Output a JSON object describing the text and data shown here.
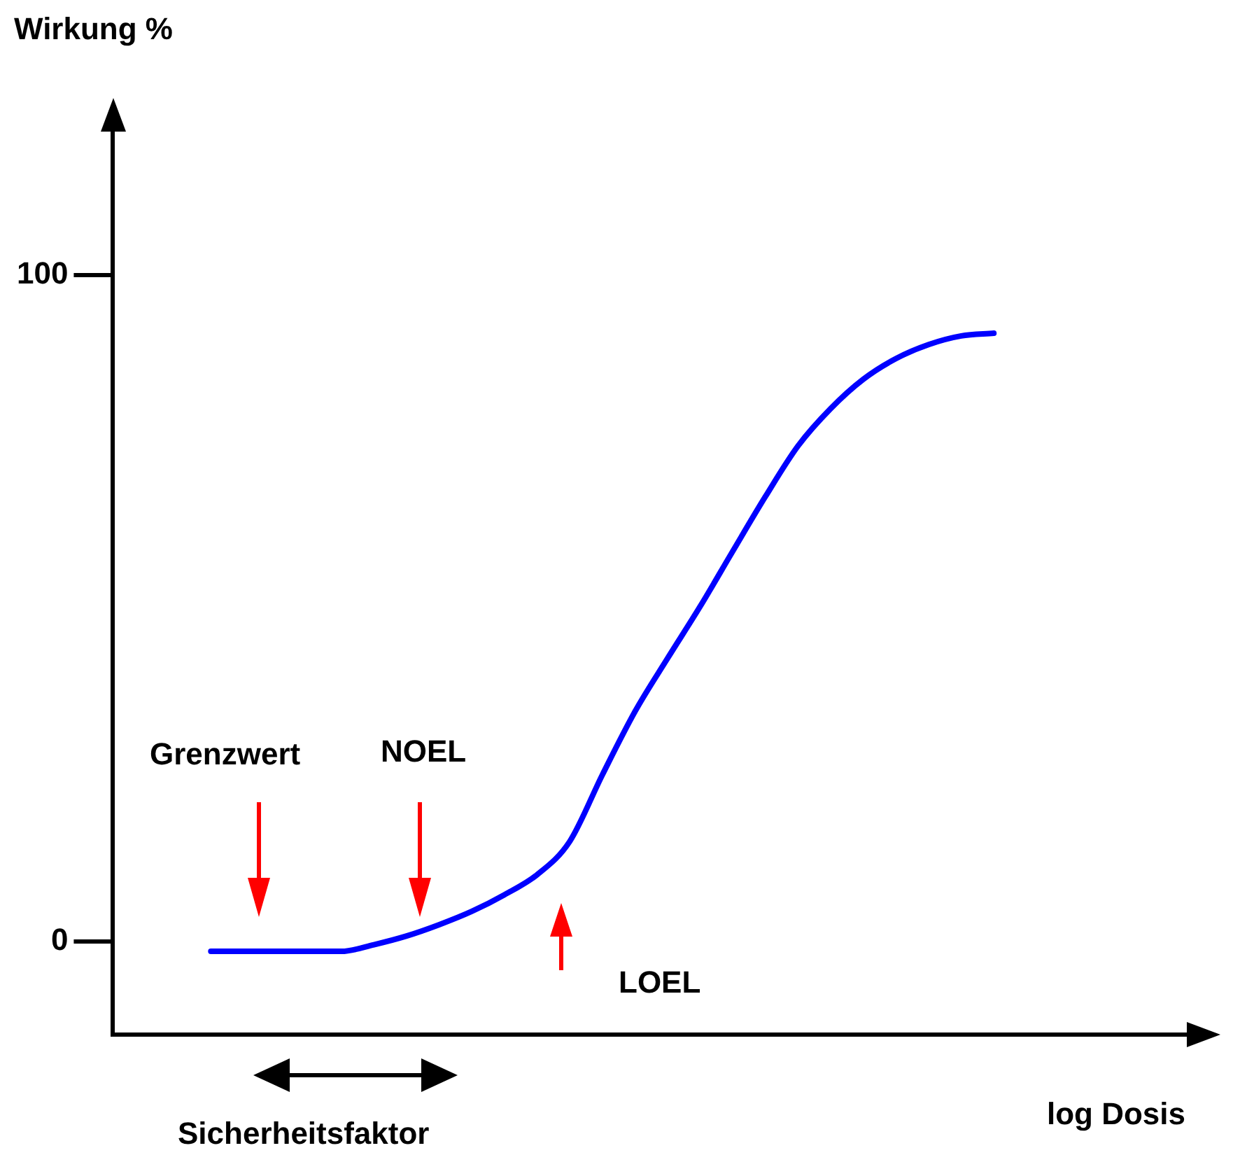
{
  "chart_data": {
    "type": "line",
    "xlabel": "log Dosis",
    "ylabel": "Wirkung %",
    "categories": [
      null,
      null,
      null,
      null,
      null,
      null,
      null,
      null,
      null,
      null,
      null,
      null,
      null,
      null,
      null,
      null,
      null,
      null,
      null,
      null,
      null,
      null,
      null,
      null,
      null,
      null,
      null,
      null,
      null,
      null,
      null,
      null,
      null,
      null
    ],
    "series": [
      {
        "color": "#0000ff",
        "values": [
          null,
          null,
          null,
          -1.5,
          -1.5,
          -1.5,
          -1.5,
          -1.5,
          -0.5,
          0.8,
          2.5,
          4.5,
          7,
          10,
          15,
          25,
          34.5,
          42.5,
          50.3,
          58.6,
          66.8,
          74.4,
          80,
          84.4,
          87.5,
          89.6,
          90.9,
          91.3,
          null,
          null,
          null,
          null,
          null,
          null
        ]
      }
    ],
    "ylim": [
      -14,
      122
    ],
    "yticks": [
      0,
      100
    ],
    "tick_labels": "y",
    "grid": false,
    "legend": false,
    "annotations": [
      "Grenzwert",
      "NOEL",
      "LOEL",
      "Sicherheitsfaktor"
    ]
  }
}
